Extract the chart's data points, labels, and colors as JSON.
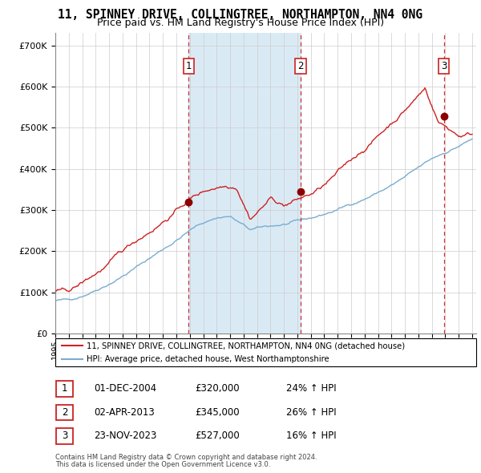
{
  "title": "11, SPINNEY DRIVE, COLLINGTREE, NORTHAMPTON, NN4 0NG",
  "subtitle": "Price paid vs. HM Land Registry's House Price Index (HPI)",
  "title_fontsize": 10.5,
  "subtitle_fontsize": 9,
  "legend_line1": "11, SPINNEY DRIVE, COLLINGTREE, NORTHAMPTON, NN4 0NG (detached house)",
  "legend_line2": "HPI: Average price, detached house, West Northamptonshire",
  "hpi_color": "#7aaccf",
  "price_color": "#cc2222",
  "sale_color": "#8b0000",
  "vline_color": "#cc3333",
  "background_color": "#ffffff",
  "shaded_color": "#daeaf5",
  "grid_color": "#cccccc",
  "ytick_values": [
    0,
    100000,
    200000,
    300000,
    400000,
    500000,
    600000,
    700000
  ],
  "ylim": [
    0,
    730000
  ],
  "xlim_start": 1995.0,
  "xlim_end": 2026.3,
  "sales": [
    {
      "label": "1",
      "date_str": "01-DEC-2004",
      "price": 320000,
      "hpi_pct": "24%",
      "x_year": 2004.92
    },
    {
      "label": "2",
      "date_str": "02-APR-2013",
      "price": 345000,
      "hpi_pct": "26%",
      "x_year": 2013.25
    },
    {
      "label": "3",
      "date_str": "23-NOV-2023",
      "price": 527000,
      "hpi_pct": "16%",
      "x_year": 2023.9
    }
  ],
  "footnote1": "Contains HM Land Registry data © Crown copyright and database right 2024.",
  "footnote2": "This data is licensed under the Open Government Licence v3.0."
}
